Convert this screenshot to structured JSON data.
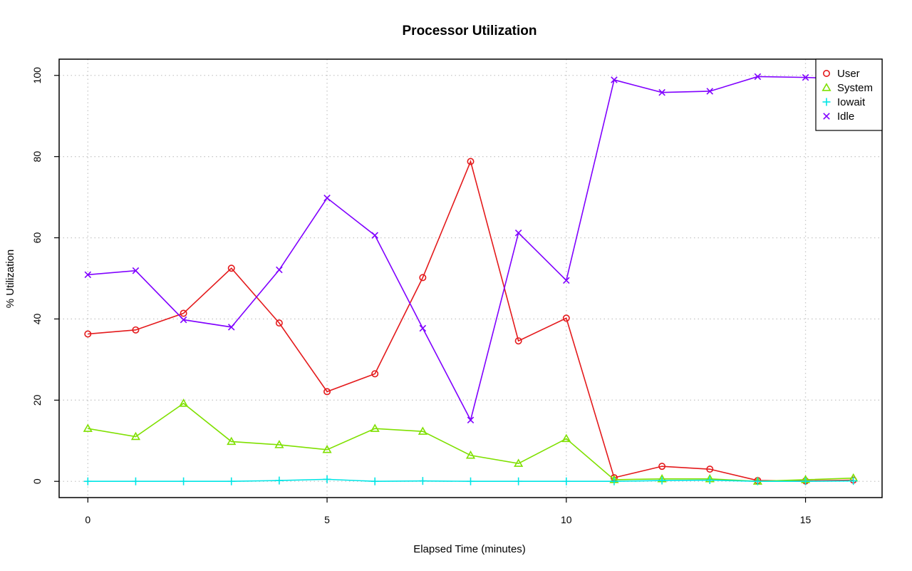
{
  "chart_data": {
    "type": "line",
    "title": "Processor Utilization",
    "xlabel": "Elapsed Time (minutes)",
    "ylabel": "% Utilization",
    "x": [
      0,
      1,
      2,
      3,
      4,
      5,
      6,
      7,
      8,
      9,
      10,
      11,
      12,
      13,
      14,
      15,
      16
    ],
    "xlim": [
      -0.6,
      16.6
    ],
    "ylim": [
      -4,
      104
    ],
    "xticks": [
      0,
      5,
      10,
      15
    ],
    "yticks": [
      0,
      20,
      40,
      60,
      80,
      100
    ],
    "grid": true,
    "legend_position": "top-right",
    "series": [
      {
        "name": "User",
        "color": "#e41a1c",
        "marker": "circle",
        "values": [
          36.3,
          37.3,
          41.4,
          52.5,
          39.0,
          22.1,
          26.5,
          50.2,
          78.8,
          34.6,
          40.2,
          0.9,
          3.7,
          3.0,
          0.2,
          0.1,
          0.3
        ]
      },
      {
        "name": "System",
        "color": "#7fe000",
        "marker": "triangle",
        "values": [
          13.0,
          11.0,
          19.2,
          9.8,
          9.0,
          7.8,
          13.0,
          12.3,
          6.4,
          4.4,
          10.5,
          0.4,
          0.6,
          0.6,
          0.0,
          0.4,
          0.8
        ]
      },
      {
        "name": "Iowait",
        "color": "#00e5e5",
        "marker": "plus",
        "values": [
          0.0,
          0.0,
          0.0,
          0.0,
          0.2,
          0.5,
          0.0,
          0.1,
          0.0,
          0.0,
          0.0,
          0.0,
          0.2,
          0.3,
          0.0,
          0.0,
          0.1
        ]
      },
      {
        "name": "Idle",
        "color": "#8000ff",
        "marker": "x",
        "values": [
          50.9,
          51.9,
          39.8,
          38.0,
          52.1,
          69.8,
          60.6,
          37.7,
          15.1,
          61.2,
          49.5,
          98.9,
          95.8,
          96.1,
          99.7,
          99.5,
          99.1
        ]
      }
    ]
  }
}
